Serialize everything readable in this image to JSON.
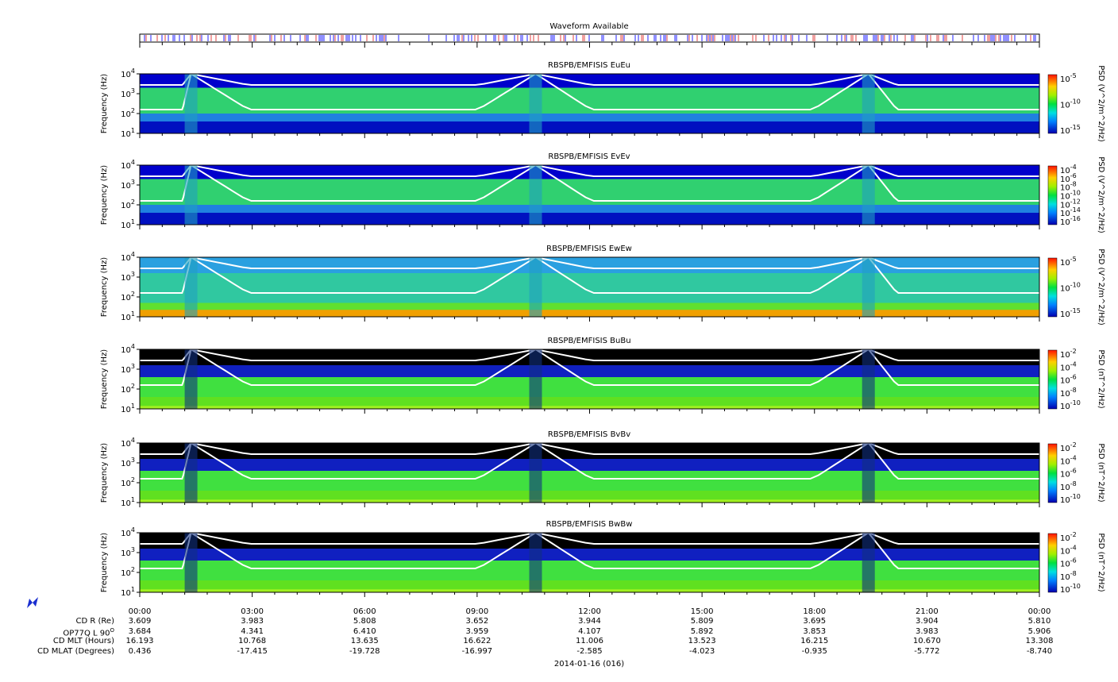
{
  "waveform_title": "Waveform Available",
  "chart_data": [
    {
      "type": "heatmap",
      "title": "RBSPB/EMFISIS  EuEu",
      "ylabel": "Frequency (Hz)",
      "y_scale": "log",
      "y_ticks": [
        "10^1",
        "10^2",
        "10^3",
        "10^4"
      ],
      "colorbar": {
        "label": "PSD (V^2/m^2/Hz)",
        "scale": "log",
        "ticks": [
          "10^-5",
          "10^-10",
          "10^-15"
        ]
      },
      "background": "spectrogram",
      "upper_cutoff_color": "#0000cc"
    },
    {
      "type": "heatmap",
      "title": "RBSPB/EMFISIS  EvEv",
      "ylabel": "Frequency (Hz)",
      "y_scale": "log",
      "y_ticks": [
        "10^1",
        "10^2",
        "10^3",
        "10^4"
      ],
      "colorbar": {
        "label": "PSD (V^2/m^2/Hz)",
        "scale": "log",
        "ticks": [
          "10^-4",
          "10^-6",
          "10^-8",
          "10^-10",
          "10^-12",
          "10^-14",
          "10^-16"
        ]
      },
      "background": "spectrogram",
      "upper_cutoff_color": "#0000cc"
    },
    {
      "type": "heatmap",
      "title": "RBSPB/EMFISIS  EwEw",
      "ylabel": "Frequency (Hz)",
      "y_scale": "log",
      "y_ticks": [
        "10^1",
        "10^2",
        "10^3",
        "10^4"
      ],
      "colorbar": {
        "label": "PSD (V^2/m^2/Hz)",
        "scale": "log",
        "ticks": [
          "10^-5",
          "10^-10",
          "10^-15"
        ]
      },
      "background": "spectrogram",
      "upper_cutoff_color": "#2aa0e0"
    },
    {
      "type": "heatmap",
      "title": "RBSPB/EMFISIS  BuBu",
      "ylabel": "Frequency (Hz)",
      "y_scale": "log",
      "y_ticks": [
        "10^1",
        "10^2",
        "10^3",
        "10^4"
      ],
      "colorbar": {
        "label": "PSD (nT^2/Hz)",
        "scale": "log",
        "ticks": [
          "10^-2",
          "10^-4",
          "10^-6",
          "10^-8",
          "10^-10"
        ]
      },
      "background": "spectrogram",
      "upper_cutoff_color": "#000000"
    },
    {
      "type": "heatmap",
      "title": "RBSPB/EMFISIS  BvBv",
      "ylabel": "Frequency (Hz)",
      "y_scale": "log",
      "y_ticks": [
        "10^1",
        "10^2",
        "10^3",
        "10^4"
      ],
      "colorbar": {
        "label": "PSD (nT^2/Hz)",
        "scale": "log",
        "ticks": [
          "10^-2",
          "10^-4",
          "10^-6",
          "10^-8",
          "10^-10"
        ]
      },
      "background": "spectrogram",
      "upper_cutoff_color": "#000000"
    },
    {
      "type": "heatmap",
      "title": "RBSPB/EMFISIS  BwBw",
      "ylabel": "Frequency (Hz)",
      "y_scale": "log",
      "y_ticks": [
        "10^1",
        "10^2",
        "10^3",
        "10^4"
      ],
      "colorbar": {
        "label": "PSD (nT^2/Hz)",
        "scale": "log",
        "ticks": [
          "10^-2",
          "10^-4",
          "10^-6",
          "10^-8",
          "10^-10"
        ]
      },
      "background": "spectrogram",
      "upper_cutoff_color": "#000000"
    }
  ],
  "x_ticks": [
    "00:00",
    "03:00",
    "06:00",
    "09:00",
    "12:00",
    "15:00",
    "18:00",
    "21:00",
    "00:00"
  ],
  "ephemeris": {
    "labels": [
      "CD R (Re)",
      "OP77Q L 90",
      "CD MLT (Hours)",
      "CD MLAT (Degrees)"
    ],
    "label_superscript": "O",
    "rows": [
      [
        "3.609",
        "3.983",
        "5.808",
        "3.652",
        "3.944",
        "5.809",
        "3.695",
        "3.904",
        "5.810"
      ],
      [
        "3.684",
        "4.341",
        "6.410",
        "3.959",
        "4.107",
        "5.892",
        "3.853",
        "3.983",
        "5.906"
      ],
      [
        "16.193",
        "10.768",
        "13.635",
        "16.622",
        "11.006",
        "13.523",
        "16.215",
        "10.670",
        "13.308"
      ],
      [
        "0.436",
        "-17.415",
        "-19.728",
        "-16.997",
        "-2.585",
        "-4.023",
        "-0.935",
        "-5.772",
        "-8.740"
      ]
    ]
  },
  "date_label": "2014-01-16 (016)"
}
